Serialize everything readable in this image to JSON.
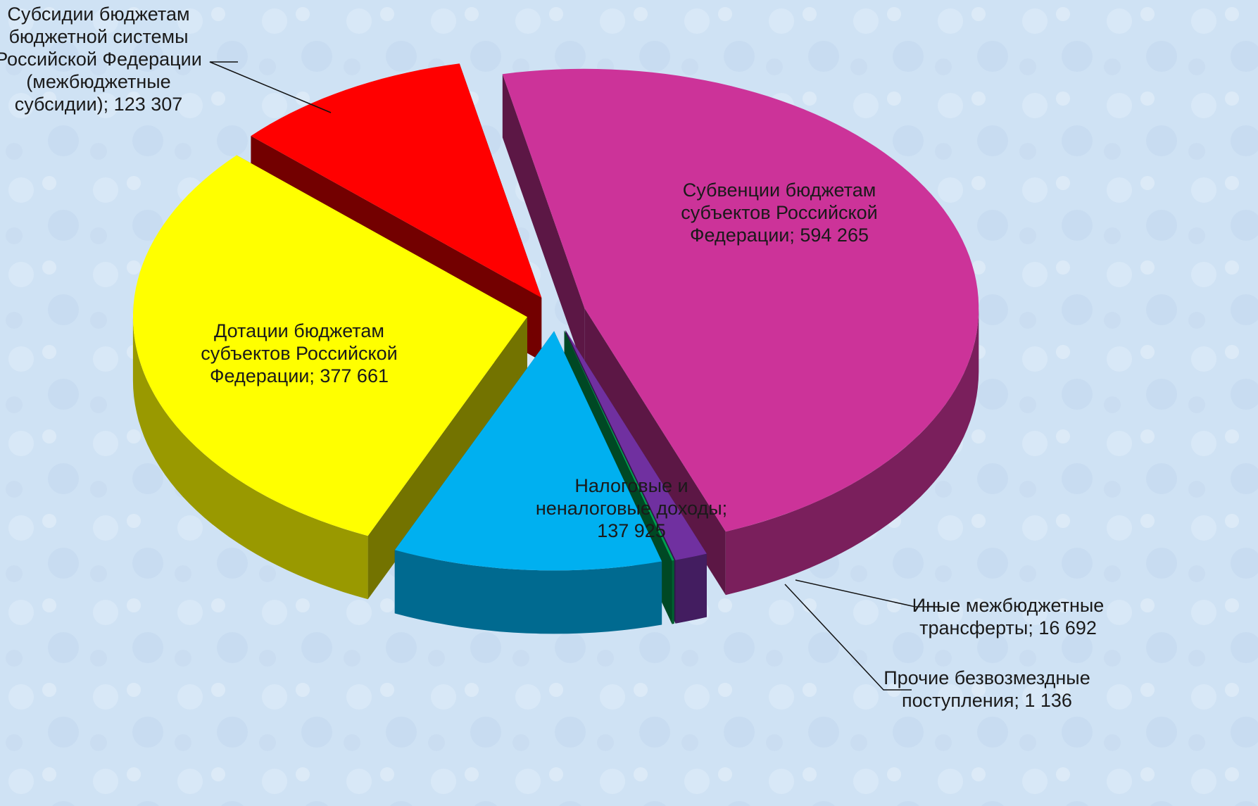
{
  "chart_data": {
    "type": "pie3d",
    "values": [
      594265,
      16692,
      1136,
      137925,
      377661,
      123307
    ],
    "value_labels": [
      [
        "Субвенции бюджетам",
        "субъектов Российской",
        "Федерации; 594 265"
      ],
      [
        "Иные межбюджетные",
        "трансферты; 16 692"
      ],
      [
        "Прочие безвозмездные",
        "поступления; 1 136"
      ],
      [
        "Налоговые и",
        "неналоговые доходы;",
        "137 925"
      ],
      [
        "Дотации бюджетам",
        "субъектов Российской",
        "Федерации; 377 661"
      ],
      [
        "Субсидии бюджетам",
        "бюджетной системы",
        "Российской Федерации",
        "(межбюджетные",
        "субсидии); 123 307"
      ]
    ],
    "colors": [
      "#cc3399",
      "#7030a0",
      "#00a050",
      "#00b0f0",
      "#ffff00",
      "#ff0000"
    ]
  }
}
